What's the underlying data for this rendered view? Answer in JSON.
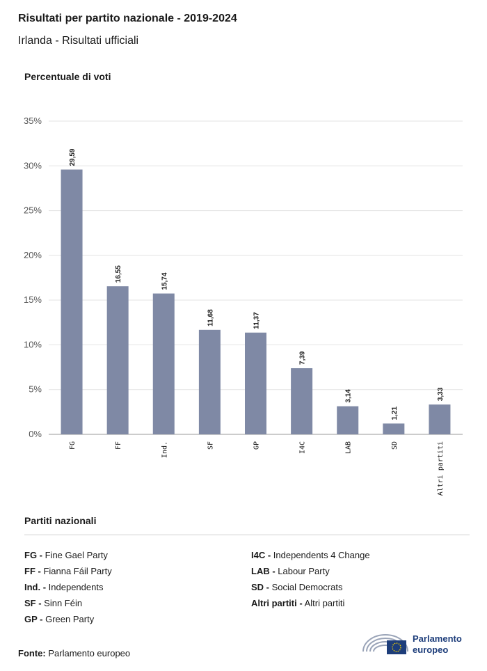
{
  "header": {
    "title": "Risultati per partito nazionale - 2019-2024",
    "subtitle": "Irlanda - Risultati ufficiali"
  },
  "chart_data": {
    "type": "bar",
    "ylabel": "Percentuale di voti",
    "categories": [
      "FG",
      "FF",
      "Ind.",
      "SF",
      "GP",
      "I4C",
      "LAB",
      "SD",
      "Altri partiti"
    ],
    "values": [
      29.59,
      16.55,
      15.74,
      11.68,
      11.37,
      7.39,
      3.14,
      1.21,
      3.33
    ],
    "value_labels": [
      "29,59",
      "16,55",
      "15,74",
      "11,68",
      "11,37",
      "7,39",
      "3,14",
      "1,21",
      "3,33"
    ],
    "ylim": [
      0,
      35
    ],
    "yticks": [
      "0%",
      "5%",
      "10%",
      "15%",
      "20%",
      "25%",
      "30%",
      "35%"
    ],
    "grid": true,
    "bar_color": "#7f89a5"
  },
  "legend": {
    "title": "Partiti nazionali",
    "left": [
      {
        "code": "FG -",
        "name": "Fine Gael Party"
      },
      {
        "code": "FF -",
        "name": "Fianna Fáil Party"
      },
      {
        "code": "Ind. -",
        "name": "Independents"
      },
      {
        "code": "SF -",
        "name": "Sinn Féin"
      },
      {
        "code": "GP -",
        "name": "Green Party"
      }
    ],
    "right": [
      {
        "code": "I4C -",
        "name": "Independents 4 Change"
      },
      {
        "code": "LAB -",
        "name": "Labour Party"
      },
      {
        "code": "SD -",
        "name": "Social Democrats"
      },
      {
        "code": "Altri partiti -",
        "name": "Altri partiti"
      }
    ]
  },
  "footer": {
    "source_label": "Fonte:",
    "source_value": "Parlamento europeo",
    "logo_line1": "Parlamento",
    "logo_line2": "europeo",
    "logo_icon": "parliament-hemicycle-eu-flag-icon"
  }
}
